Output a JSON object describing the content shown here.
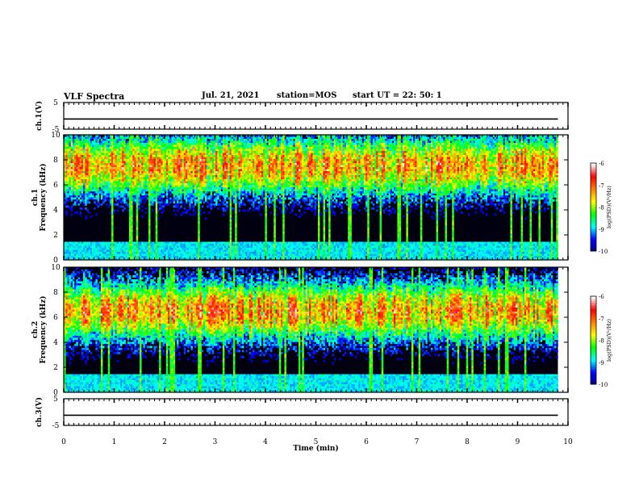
{
  "header": {
    "title": "VLF Spectra",
    "date": "Jul. 21, 2021",
    "station": "station=MOS",
    "start": "start UT =  22: 50: 1"
  },
  "chart_data": [
    {
      "type": "line",
      "panel": "ch1-waveform",
      "ylabel": "ch.1(V)",
      "ylim": [
        -5,
        5
      ],
      "yticks": [
        "5",
        "-5"
      ],
      "xlim": [
        0,
        10
      ],
      "series": [
        {
          "x": [
            0,
            9.8
          ],
          "values": [
            -1.2,
            -1.2
          ]
        }
      ]
    },
    {
      "type": "heatmap",
      "panel": "ch1-spectrogram",
      "ylabel": "ch.1\nFrequency (kHz)",
      "ylim": [
        0,
        10
      ],
      "yticks": [
        "0",
        "2",
        "4",
        "6",
        "8",
        "10"
      ],
      "xlim": [
        0,
        10
      ],
      "data_extent_x": [
        0,
        9.8
      ],
      "peak_band_khz": [
        6,
        9
      ],
      "colorbar": {
        "label": "log(PSD)(V²/Hz)",
        "range": [
          -10,
          -6
        ],
        "ticks": [
          "-6",
          "-7",
          "-8",
          "-9",
          "-10"
        ]
      },
      "colorscale": [
        "#00007f",
        "#0000ff",
        "#00ffff",
        "#00ff00",
        "#ffff00",
        "#ff7f00",
        "#ff0000",
        "#ffffff"
      ]
    },
    {
      "type": "heatmap",
      "panel": "ch2-spectrogram",
      "ylabel": "ch.2\nFrequency (kHz)",
      "ylim": [
        0,
        10
      ],
      "yticks": [
        "0",
        "2",
        "4",
        "6",
        "8",
        "10"
      ],
      "xlim": [
        0,
        10
      ],
      "data_extent_x": [
        0,
        9.8
      ],
      "peak_band_khz": [
        5,
        8
      ],
      "colorbar": {
        "label": "log(PSD)(V²/Hz)",
        "range": [
          -10,
          -6
        ],
        "ticks": [
          "-6",
          "-7",
          "-8",
          "-9",
          "-10"
        ]
      },
      "colorscale": [
        "#00007f",
        "#0000ff",
        "#00ffff",
        "#00ff00",
        "#ffff00",
        "#ff7f00",
        "#ff0000",
        "#ffffff"
      ]
    },
    {
      "type": "line",
      "panel": "ch3-waveform",
      "ylabel": "ch.3(V)",
      "ylim": [
        -5,
        5
      ],
      "yticks": [
        "5",
        "-5"
      ],
      "xlim": [
        0,
        10
      ],
      "xlabel": "Time (min)",
      "xticks": [
        "0",
        "1",
        "2",
        "3",
        "4",
        "5",
        "6",
        "7",
        "8",
        "9",
        "10"
      ],
      "series": [
        {
          "x": [
            0,
            9.8
          ],
          "values": [
            -1.2,
            -1.2
          ]
        }
      ]
    }
  ]
}
